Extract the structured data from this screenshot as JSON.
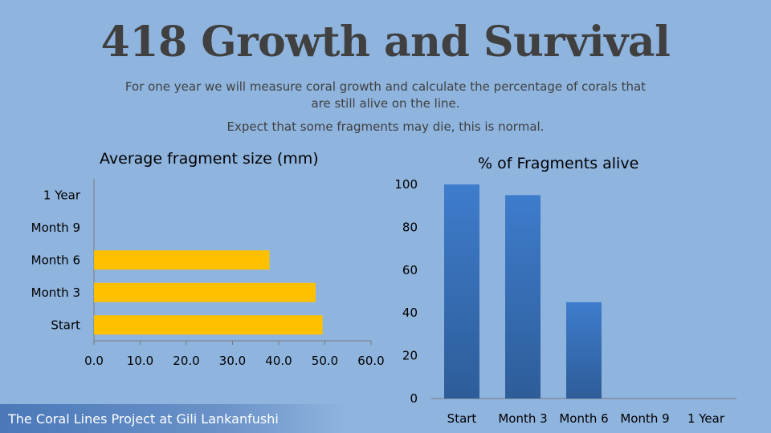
{
  "header": {
    "title": "418 Growth and Survival",
    "subtitle": "For one year we will measure coral growth and calculate the percentage of corals that are still alive on the line.",
    "note": "Expect that some fragments may die, this is normal."
  },
  "footer": {
    "text": "The Coral Lines Project at Gili Lankanfushi"
  },
  "colors": {
    "background": "#8fb4de",
    "bar_left": "#ffc000",
    "bar_right": "#3a70b8"
  },
  "chart_data": [
    {
      "type": "bar",
      "orientation": "horizontal",
      "title": "Average fragment size (mm)",
      "categories": [
        "Start",
        "Month 3",
        "Month 6",
        "Month 9",
        "1 Year"
      ],
      "values": [
        49.5,
        48,
        38,
        null,
        null
      ],
      "xlim": [
        0,
        60
      ],
      "ticks": [
        "0.0",
        "10.0",
        "20.0",
        "30.0",
        "40.0",
        "50.0",
        "60.0"
      ],
      "grid": false
    },
    {
      "type": "bar",
      "orientation": "vertical",
      "title": "% of Fragments alive",
      "categories": [
        "Start",
        "Month 3",
        "Month 6",
        "Month 9",
        "1 Year"
      ],
      "values": [
        100,
        95,
        45,
        null,
        null
      ],
      "ylim": [
        0,
        100
      ],
      "ticks": [
        "0",
        "20",
        "40",
        "60",
        "80",
        "100"
      ],
      "grid": false
    }
  ]
}
